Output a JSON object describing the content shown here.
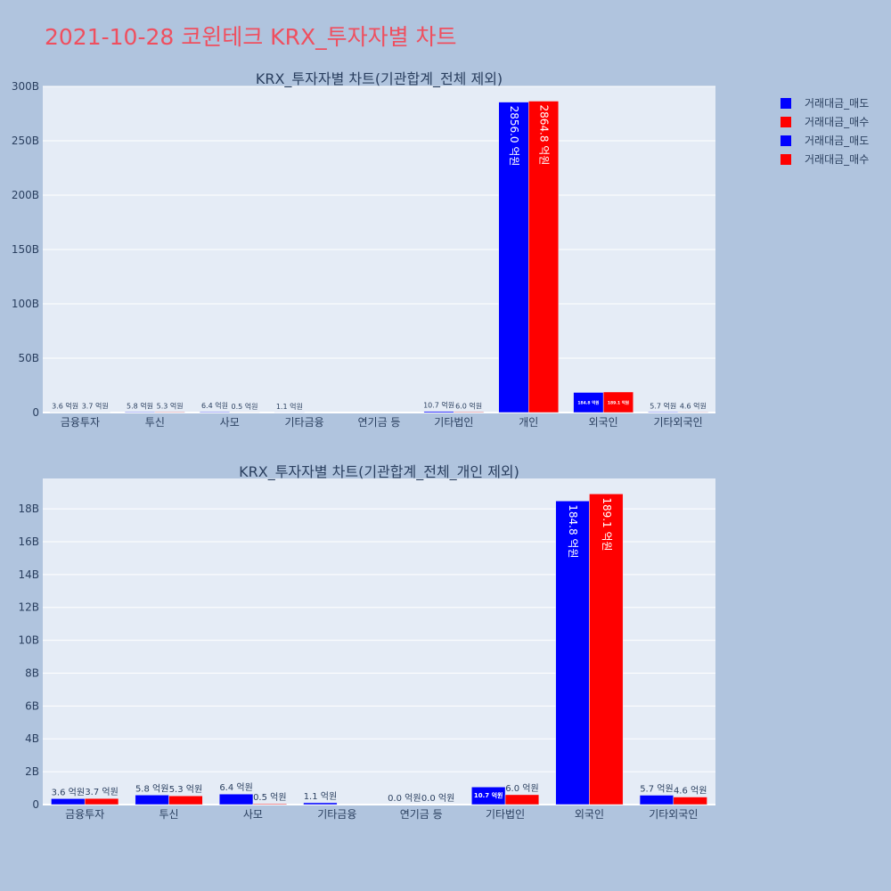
{
  "page_title": "2021-10-28 코윈테크 KRX_투자자별 차트",
  "legend": [
    {
      "name": "거래대금_매도",
      "color": "#0000ff"
    },
    {
      "name": "거래대금_매수",
      "color": "#ff0000"
    },
    {
      "name": "거래대금_매도",
      "color": "#0000ff"
    },
    {
      "name": "거래대금_매수",
      "color": "#ff0000"
    }
  ],
  "chart_data": [
    {
      "type": "bar",
      "title": "KRX_투자자별 차트(기관합계_전체 제외)",
      "categories": [
        "금융투자",
        "투신",
        "사모",
        "기타금융",
        "연기금 등",
        "기타법인",
        "개인",
        "외국인",
        "기타외국인"
      ],
      "ylim": [
        0,
        300
      ],
      "yticks": [
        0,
        50,
        100,
        150,
        200,
        250,
        300
      ],
      "ytick_labels": [
        "0",
        "50B",
        "100B",
        "150B",
        "200B",
        "250B",
        "300B"
      ],
      "series": [
        {
          "name": "거래대금_매도",
          "color": "#0000ff",
          "values": [
            0.36,
            0.58,
            0.64,
            0.11,
            0,
            1.07,
            285.6,
            18.48,
            0.57
          ],
          "labels": [
            "3.6 억원",
            "5.8 억원",
            "6.4 억원",
            "1.1 억원",
            "",
            "10.7 억원",
            "2856.0 억원",
            "184.8 억원",
            "5.7 억원"
          ]
        },
        {
          "name": "거래대금_매수",
          "color": "#ff0000",
          "values": [
            0.37,
            0.53,
            0.05,
            0,
            0,
            0.6,
            286.48,
            18.91,
            0.46
          ],
          "labels": [
            "3.7 억원",
            "5.3 억원",
            "0.5 억원",
            "",
            "",
            "6.0 억원",
            "2864.8 억원",
            "189.1 억원",
            "4.6 억원"
          ]
        }
      ]
    },
    {
      "type": "bar",
      "title": "KRX_투자자별 차트(기관합계_전체_개인 제외)",
      "categories": [
        "금융투자",
        "투신",
        "사모",
        "기타금융",
        "연기금 등",
        "기타법인",
        "외국인",
        "기타외국인"
      ],
      "ylim": [
        0,
        19.85
      ],
      "yticks": [
        0,
        2,
        4,
        6,
        8,
        10,
        12,
        14,
        16,
        18
      ],
      "ytick_labels": [
        "0",
        "2B",
        "4B",
        "6B",
        "8B",
        "10B",
        "12B",
        "14B",
        "16B",
        "18B"
      ],
      "series": [
        {
          "name": "거래대금_매도",
          "color": "#0000ff",
          "values": [
            0.36,
            0.58,
            0.64,
            0.11,
            0.0,
            1.07,
            18.48,
            0.57
          ],
          "labels": [
            "3.6 억원",
            "5.8 억원",
            "6.4 억원",
            "1.1 억원",
            "0.0 억원",
            "10.7 억원",
            "184.8 억원",
            "5.7 억원"
          ]
        },
        {
          "name": "거래대금_매수",
          "color": "#ff0000",
          "values": [
            0.37,
            0.53,
            0.05,
            0,
            0.0,
            0.6,
            18.91,
            0.46
          ],
          "labels": [
            "3.7 억원",
            "5.3 억원",
            "0.5 억원",
            "",
            "0.0 억원",
            "6.0 억원",
            "189.1 억원",
            "4.6 억원"
          ]
        }
      ]
    }
  ]
}
